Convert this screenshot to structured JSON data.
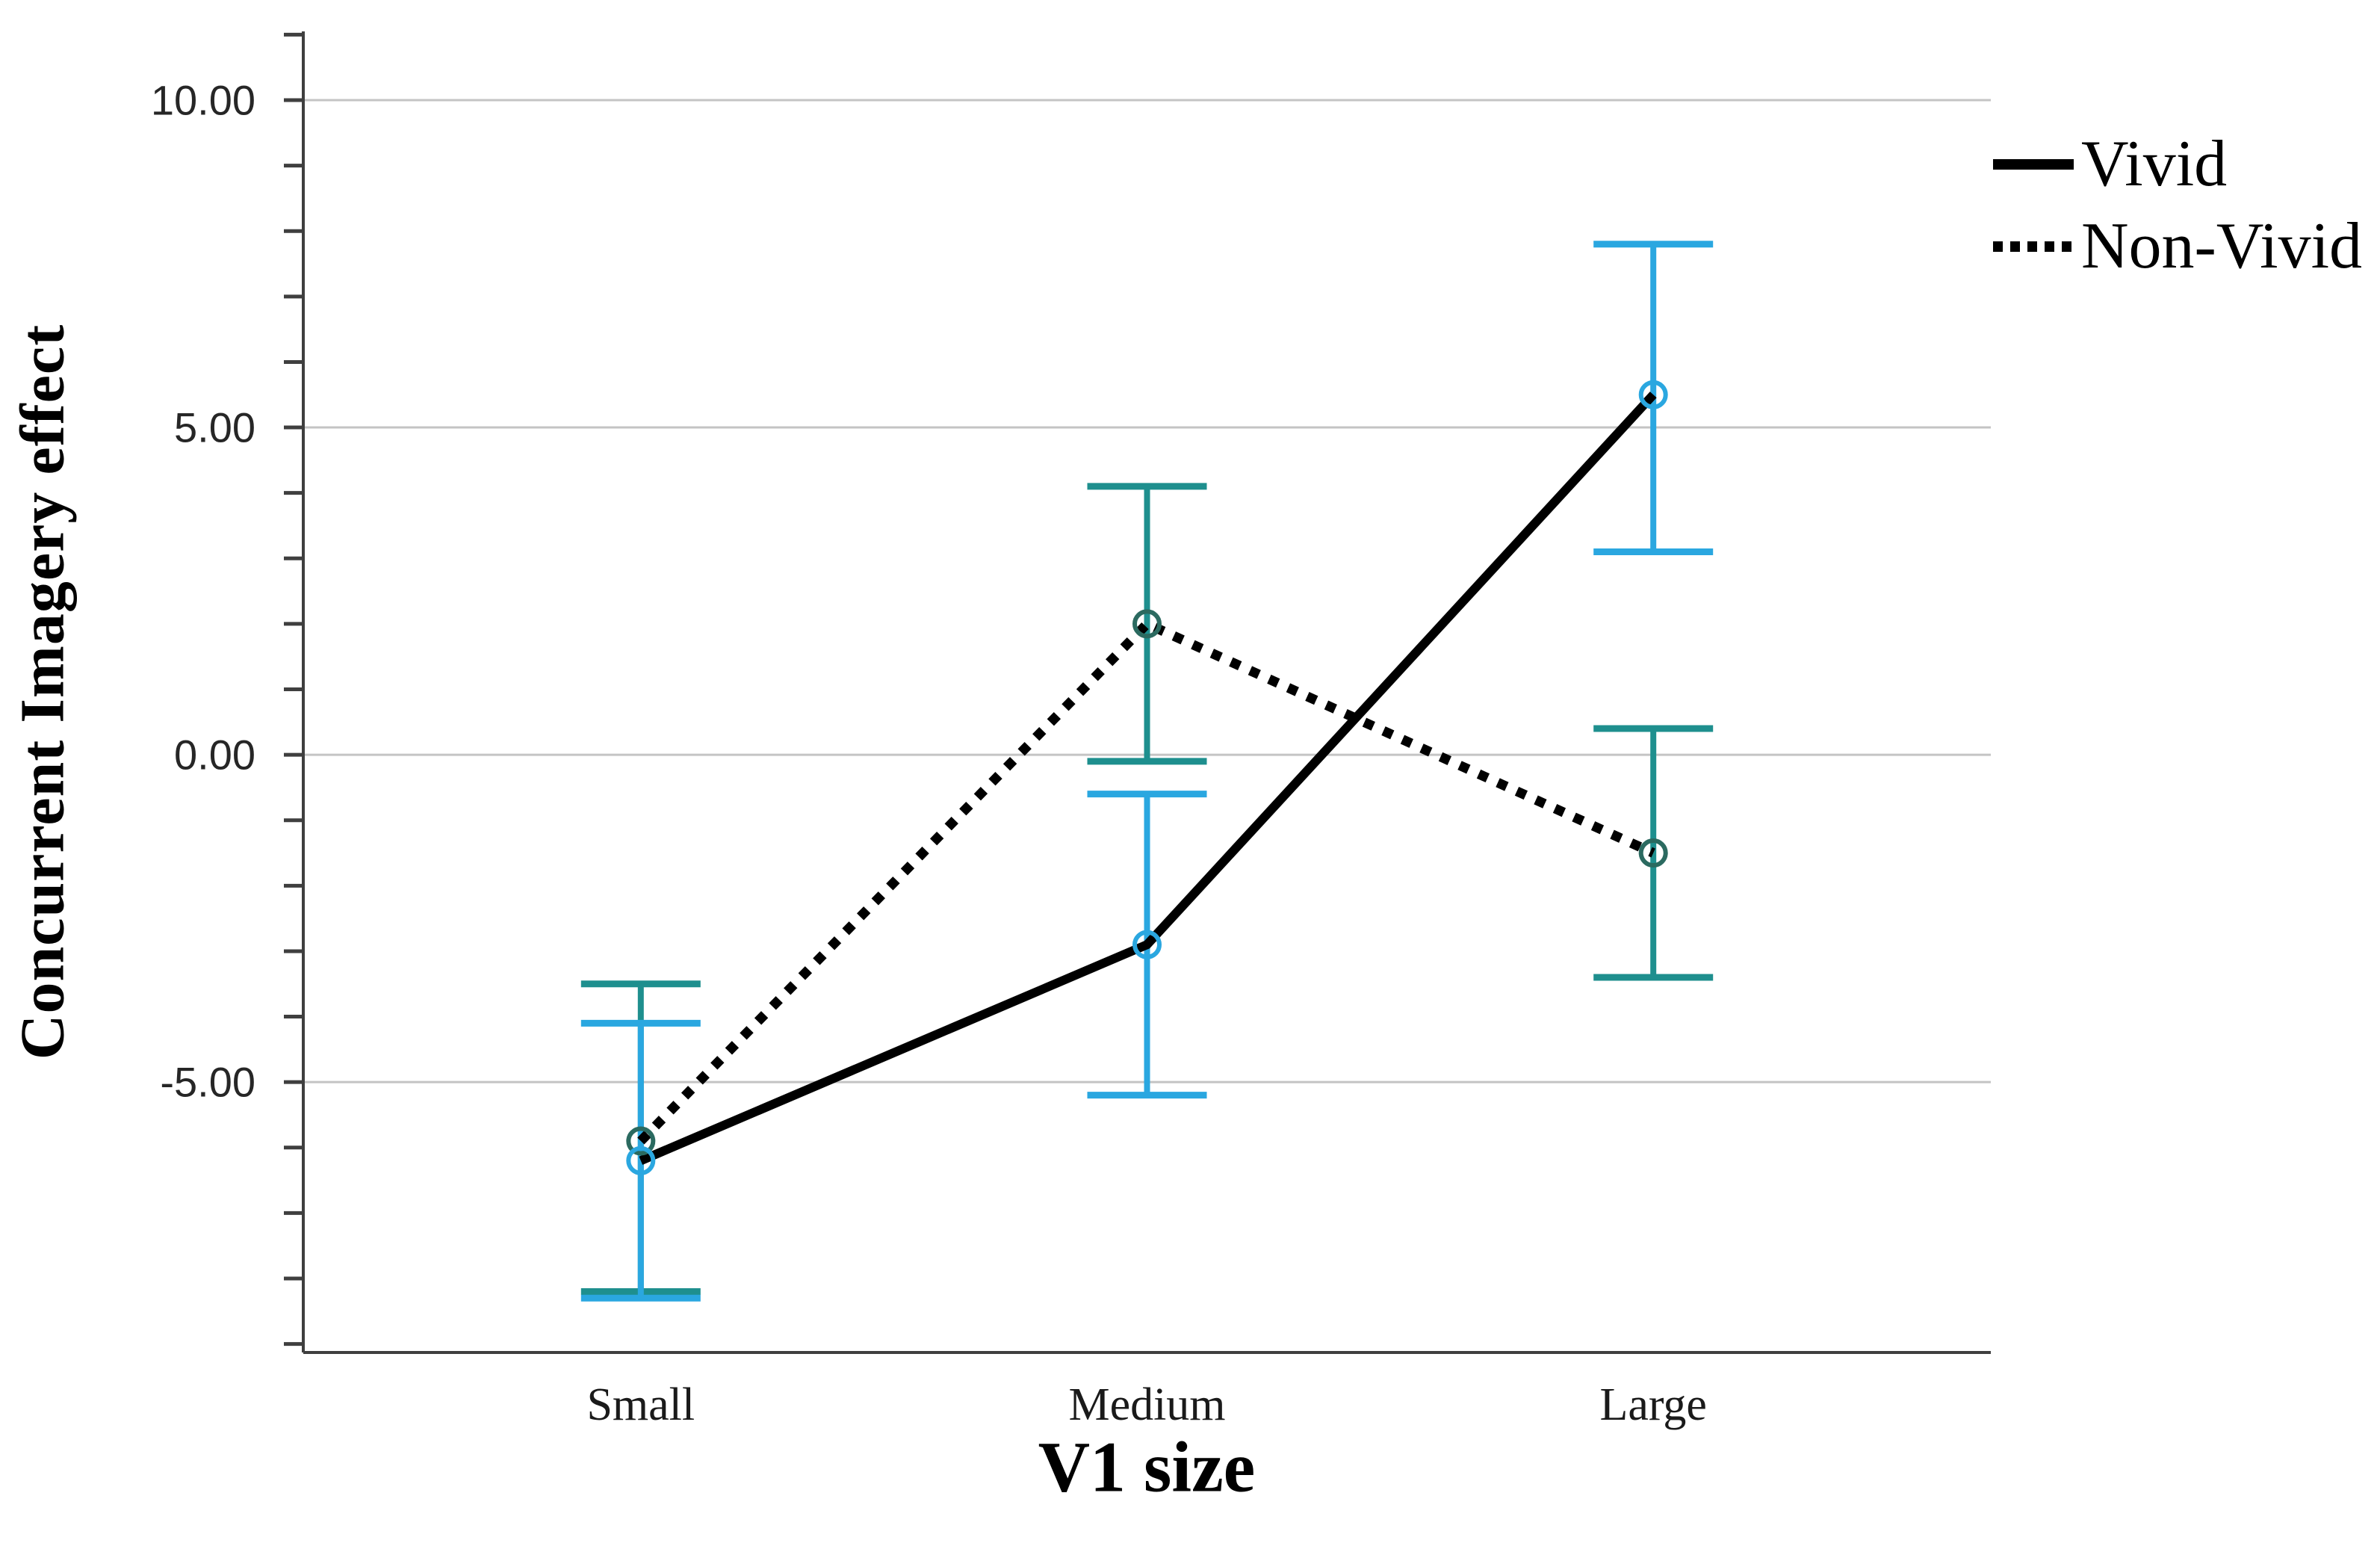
{
  "chart_data": {
    "type": "line",
    "title": "",
    "xlabel": "V1 size",
    "ylabel": "Concurrent Imagery effect",
    "categories": [
      "Small",
      "Medium",
      "Large"
    ],
    "series": [
      {
        "name": "Vivid",
        "values": [
          -6.2,
          -2.9,
          5.5
        ],
        "ci_lower": [
          -8.3,
          -5.2,
          3.1
        ],
        "ci_upper": [
          -4.1,
          -0.6,
          7.8
        ],
        "line_style": "solid",
        "line_color": "#000000",
        "error_bar_color": "#2AA7E0",
        "marker": "open-circle",
        "marker_color": "#2AA7E0"
      },
      {
        "name": "Non-Vivid",
        "values": [
          -5.9,
          2.0,
          -1.5
        ],
        "ci_lower": [
          -8.2,
          -0.1,
          -3.4
        ],
        "ci_upper": [
          -3.5,
          4.1,
          0.4
        ],
        "line_style": "dotted",
        "line_color": "#000000",
        "error_bar_color": "#1E8F8E",
        "marker": "open-circle",
        "marker_color": "#2B6A60"
      }
    ],
    "ylim": [
      -9.13,
      11.05
    ],
    "yticks": [
      {
        "value": 10,
        "label": "10.00"
      },
      {
        "value": 5,
        "label": "5.00"
      },
      {
        "value": 0,
        "label": "0.00"
      },
      {
        "value": -5,
        "label": "-5.00"
      }
    ],
    "y_minor_ticks": {
      "min": -9,
      "max": 11,
      "step": 1
    },
    "grid": "horizontal-major-only",
    "legend": {
      "position": "top-right-outside",
      "entries": [
        {
          "label": "Vivid",
          "style": "solid-black-line"
        },
        {
          "label": "Non-Vivid",
          "style": "dotted-black-line"
        }
      ]
    },
    "colors": {
      "grid": "#C4C4C4",
      "axis": "#3F3F3F",
      "y_tick_label": "#262626",
      "x_tick_label": "#1A1A1A"
    }
  }
}
